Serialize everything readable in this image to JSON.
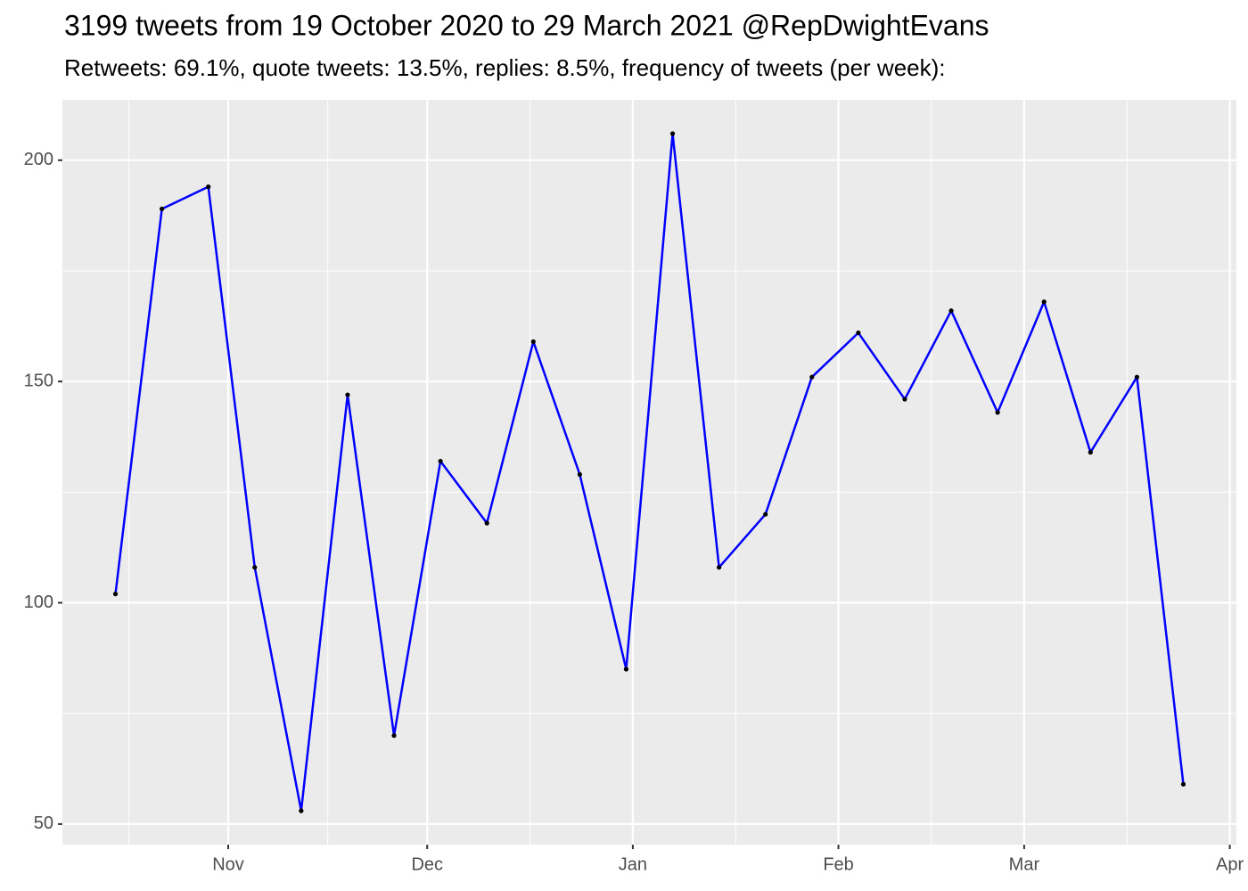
{
  "chart_data": {
    "type": "line",
    "title": "3199 tweets from 19 October 2020 to 29 March 2021 @RepDwightEvans",
    "subtitle": "Retweets: 69.1%, quote tweets: 13.5%, replies: 8.5%, frequency of tweets (per week):",
    "x": [
      "2020-10-15",
      "2020-10-22",
      "2020-10-29",
      "2020-11-05",
      "2020-11-12",
      "2020-11-19",
      "2020-11-26",
      "2020-12-03",
      "2020-12-10",
      "2020-12-17",
      "2020-12-24",
      "2020-12-31",
      "2021-01-07",
      "2021-01-14",
      "2021-01-21",
      "2021-01-28",
      "2021-02-04",
      "2021-02-11",
      "2021-02-18",
      "2021-02-25",
      "2021-03-04",
      "2021-03-11",
      "2021-03-18",
      "2021-03-25"
    ],
    "series": [
      {
        "color": "#0000ff",
        "point_color": "#000000",
        "values": [
          102,
          189,
          194,
          108,
          53,
          147,
          70,
          132,
          118,
          159,
          129,
          85,
          206,
          108,
          120,
          151,
          161,
          146,
          166,
          143,
          168,
          134,
          151,
          59
        ]
      }
    ],
    "xlim": [
      "2020-10-07",
      "2021-04-02"
    ],
    "xticks": [
      {
        "value": "2020-11-01",
        "label": "Nov"
      },
      {
        "value": "2020-12-01",
        "label": "Dec"
      },
      {
        "value": "2021-01-01",
        "label": "Jan"
      },
      {
        "value": "2021-02-01",
        "label": "Feb"
      },
      {
        "value": "2021-03-01",
        "label": "Mar"
      },
      {
        "value": "2021-04-01",
        "label": "Apr"
      }
    ],
    "ylim": [
      45.35,
      213.65
    ],
    "yticks": [
      50,
      100,
      150,
      200
    ],
    "grid": true
  }
}
